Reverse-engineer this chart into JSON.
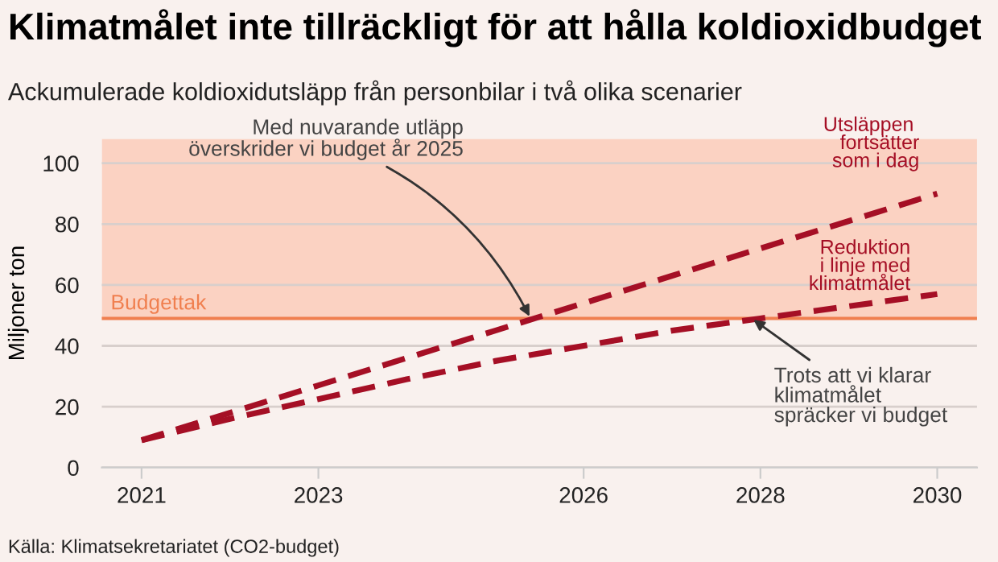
{
  "chart_data": {
    "type": "line",
    "title": "Klimatmålet inte tillräckligt för att hålla koldioxidbudget",
    "subtitle": "Ackumulerade koldioxidutsläpp från personbilar i två olika scenarier",
    "ylabel": "Miljoner ton",
    "x": [
      2021,
      2022,
      2023,
      2024,
      2025,
      2026,
      2027,
      2028,
      2029,
      2030
    ],
    "series": [
      {
        "name": "Utsläppen fortsätter som i dag",
        "color": "#a50f25",
        "values": [
          9,
          18,
          27,
          36,
          45,
          54,
          63,
          72,
          81,
          90
        ]
      },
      {
        "name": "Reduktion i linje med klimatmålet",
        "color": "#a50f25",
        "values": [
          9,
          16,
          22.5,
          29,
          35,
          40,
          45,
          49,
          53,
          57
        ]
      }
    ],
    "line_style": "dashed",
    "marker": "none",
    "xlim": [
      2020.55,
      2030.45
    ],
    "xticks": [
      2021,
      2023,
      2026,
      2028,
      2030
    ],
    "ylim": [
      0,
      108
    ],
    "yticks": [
      0,
      20,
      40,
      60,
      80,
      100
    ],
    "grid": "y",
    "ref_lines": [
      {
        "axis": "y",
        "value": 49,
        "label": "Budgettak",
        "color": "#f07f4f"
      }
    ],
    "bands": [
      {
        "axis": "y",
        "from": 49,
        "to": 108,
        "color": "#fbd2c2"
      }
    ],
    "annotations": [
      {
        "text": "Med nuvarande utläpp\növerskrider vi budget år 2025",
        "x": 2025.4,
        "y": 49
      },
      {
        "text": "Trots att vi klarar\nklimatmålet\nspräcker vi budget",
        "x": 2027.9,
        "y": 49
      },
      "Källa: Klimatsekretariatet (CO2-budget)"
    ]
  }
}
